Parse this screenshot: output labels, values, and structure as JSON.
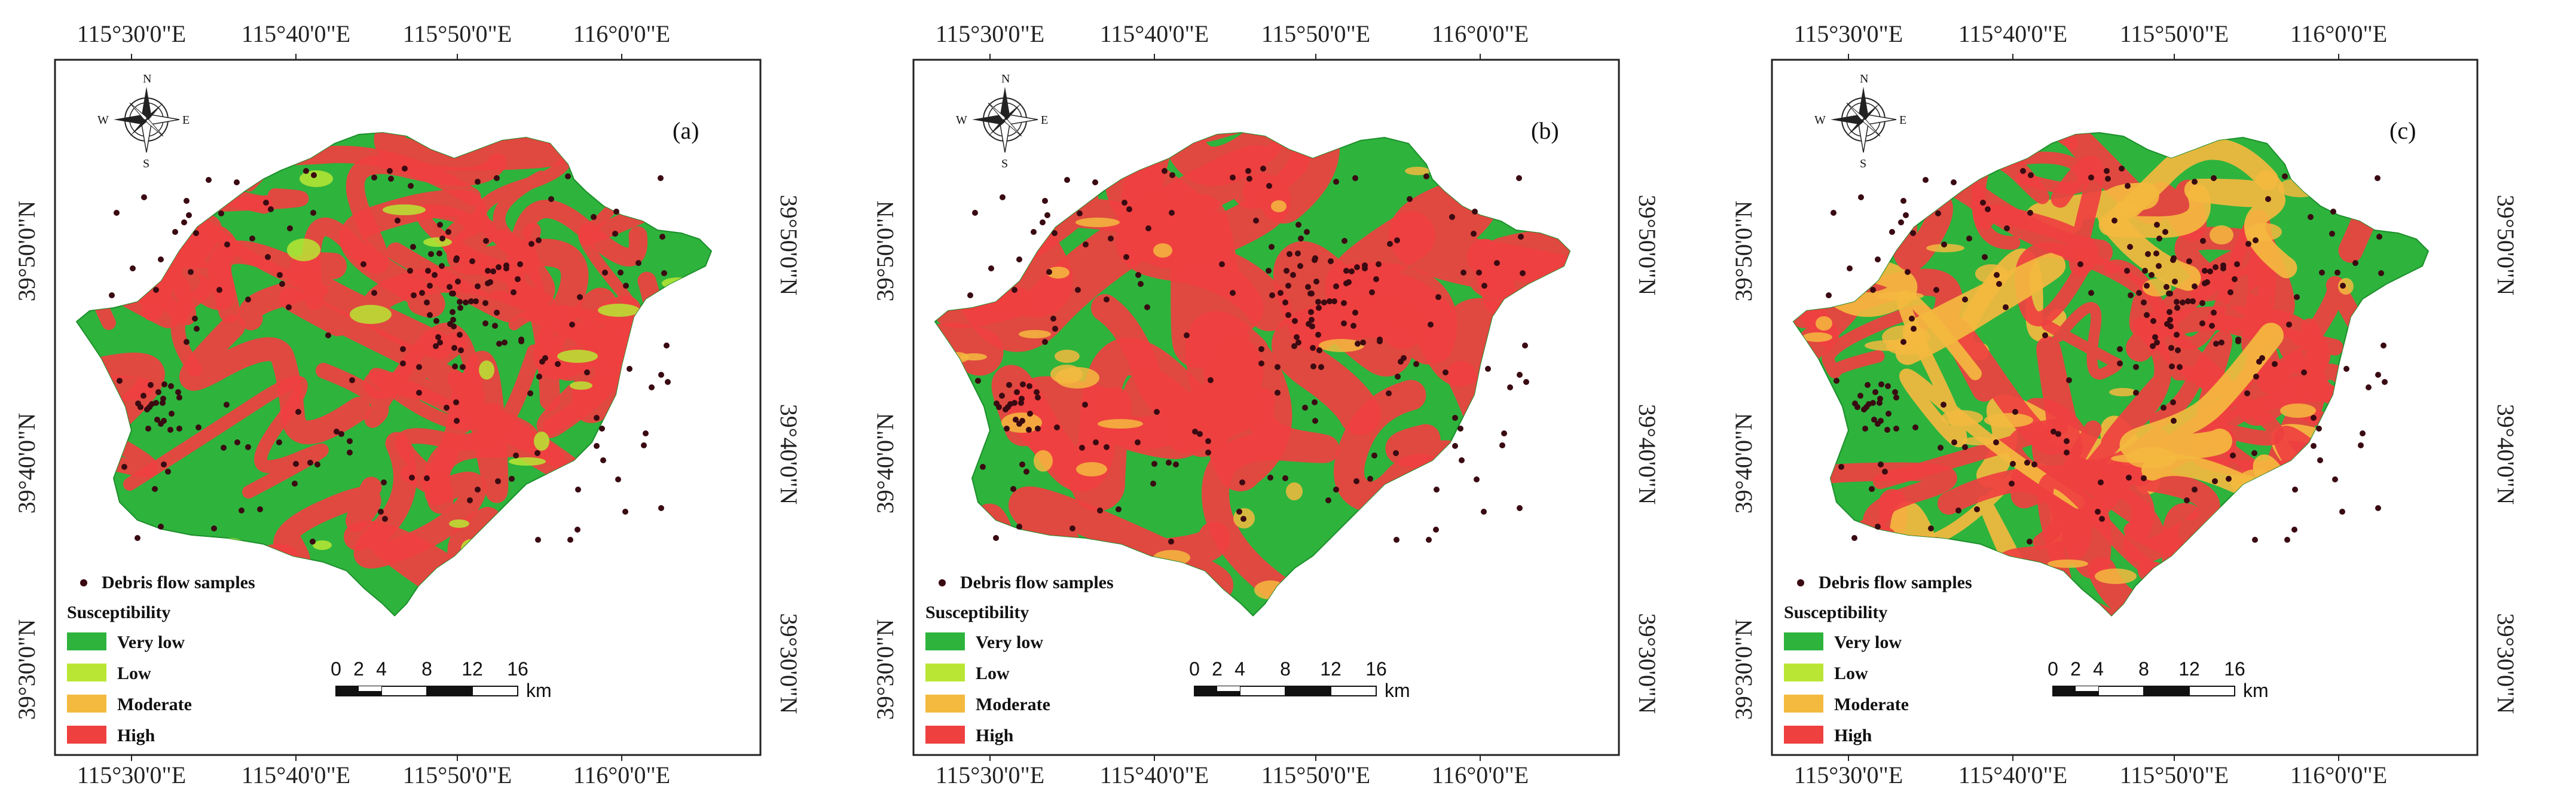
{
  "coords": {
    "lon": [
      "115°30'0\"E",
      "115°40'0\"E",
      "115°50'0\"E",
      "116°0'0\"E"
    ],
    "lat": [
      "39°50'0\"N",
      "39°40'0\"N",
      "39°30'0\"N"
    ]
  },
  "compass": {
    "n": "N",
    "s": "S",
    "e": "E",
    "w": "W"
  },
  "legend": {
    "samples_label": "Debris flow samples",
    "title": "Susceptibility",
    "classes": [
      {
        "label": "Very low",
        "color": "#2eb33d"
      },
      {
        "label": "Low",
        "color": "#b9e634"
      },
      {
        "label": "Moderate",
        "color": "#f4b93f"
      },
      {
        "label": "High",
        "color": "#ef4040"
      }
    ]
  },
  "scalebar": {
    "ticks": [
      "0",
      "2",
      "4",
      "8",
      "12",
      "16"
    ],
    "unit": "km"
  },
  "panels": [
    {
      "label": "(a)",
      "base": "#2eb33d",
      "high": "#ef4040",
      "moderate": "#f4b93f"
    },
    {
      "label": "(b)",
      "base": "#2eb33d",
      "high": "#ef4040",
      "moderate": "#f4b93f"
    },
    {
      "label": "(c)",
      "base": "#2eb33d",
      "high": "#ef4040",
      "moderate": "#f4b93f"
    }
  ]
}
